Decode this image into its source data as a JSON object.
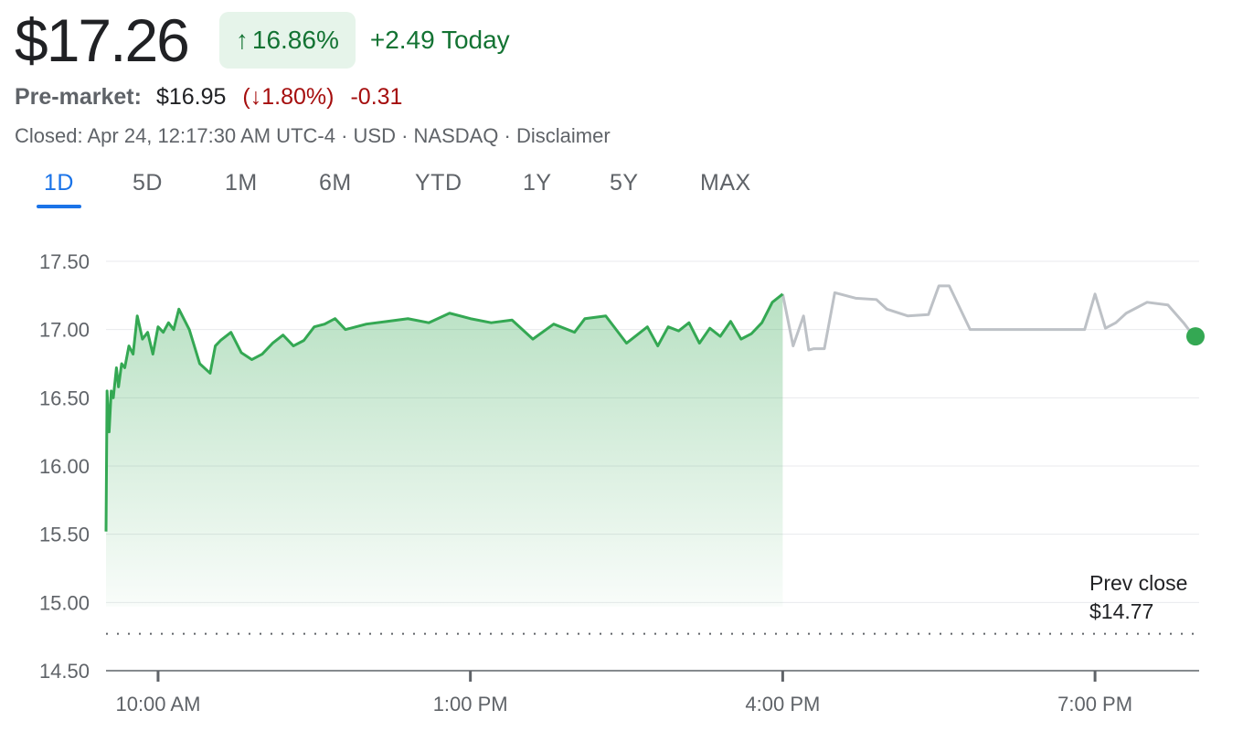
{
  "quote": {
    "price": "$17.26",
    "change_arrow": "↑",
    "change_pct": "16.86%",
    "change_today": "+2.49 Today",
    "premarket_label": "Pre-market:",
    "premarket_price": "$16.95",
    "premarket_open_paren": "(",
    "premarket_arrow": "↓",
    "premarket_pct": "1.80%",
    "premarket_close_paren": ")",
    "premarket_change": "-0.31",
    "closed_info": "Closed: Apr 24, 12:17:30 AM UTC-4 · USD · NASDAQ · Disclaimer"
  },
  "tabs": [
    {
      "label": "1D",
      "active": true
    },
    {
      "label": "5D"
    },
    {
      "label": "1M"
    },
    {
      "label": "6M"
    },
    {
      "label": "YTD"
    },
    {
      "label": "1Y"
    },
    {
      "label": "5Y"
    },
    {
      "label": "MAX"
    }
  ],
  "chart_data": {
    "type": "line",
    "ylim": [
      14.5,
      17.5
    ],
    "y_ticks": [
      "17.50",
      "17.00",
      "16.50",
      "16.00",
      "15.50",
      "15.00",
      "14.50"
    ],
    "y_tick_values": [
      17.5,
      17.0,
      16.5,
      16.0,
      15.5,
      15.0,
      14.5
    ],
    "x_ticks": [
      "10:00 AM",
      "1:00 PM",
      "4:00 PM",
      "7:00 PM"
    ],
    "x_tick_hours": [
      10,
      13,
      16,
      19
    ],
    "x_range_hours": [
      9.5,
      20
    ],
    "prev_close": 14.77,
    "prev_close_label": "Prev close",
    "prev_close_value": "$14.77",
    "grid": true,
    "colors": {
      "regular": "#34a853",
      "extended": "#bdc1c6",
      "fill": "#e6f4ea"
    },
    "series": [
      {
        "session": "regular",
        "x_hours": [
          9.5,
          9.51,
          9.53,
          9.55,
          9.57,
          9.6,
          9.62,
          9.65,
          9.68,
          9.72,
          9.76,
          9.8,
          9.85,
          9.9,
          9.95,
          10.0,
          10.05,
          10.1,
          10.15,
          10.2,
          10.3,
          10.4,
          10.5,
          10.55,
          10.6,
          10.7,
          10.8,
          10.9,
          11.0,
          11.1,
          11.2,
          11.3,
          11.4,
          11.5,
          11.6,
          11.7,
          11.8,
          11.9,
          12.0,
          12.2,
          12.4,
          12.6,
          12.8,
          13.0,
          13.2,
          13.4,
          13.6,
          13.8,
          14.0,
          14.1,
          14.3,
          14.5,
          14.7,
          14.8,
          14.9,
          15.0,
          15.1,
          15.2,
          15.3,
          15.4,
          15.5,
          15.6,
          15.7,
          15.8,
          15.9,
          16.0
        ],
        "y": [
          15.52,
          16.55,
          16.25,
          16.55,
          16.5,
          16.72,
          16.58,
          16.75,
          16.72,
          16.88,
          16.82,
          17.1,
          16.93,
          16.98,
          16.82,
          17.02,
          16.98,
          17.05,
          17.0,
          17.15,
          17.0,
          16.75,
          16.68,
          16.88,
          16.92,
          16.98,
          16.83,
          16.78,
          16.82,
          16.9,
          16.96,
          16.88,
          16.92,
          17.02,
          17.04,
          17.08,
          17.0,
          17.02,
          17.04,
          17.06,
          17.08,
          17.05,
          17.12,
          17.08,
          17.05,
          17.07,
          16.93,
          17.04,
          16.98,
          17.08,
          17.1,
          16.9,
          17.02,
          16.88,
          17.02,
          16.99,
          17.05,
          16.9,
          17.01,
          16.95,
          17.06,
          16.93,
          16.97,
          17.05,
          17.2,
          17.26
        ]
      },
      {
        "session": "extended",
        "x_hours": [
          16.0,
          16.1,
          16.2,
          16.25,
          16.3,
          16.4,
          16.5,
          16.55,
          16.7,
          16.9,
          17.0,
          17.2,
          17.4,
          17.5,
          17.6,
          17.8,
          18.0,
          18.2,
          18.4,
          18.6,
          18.7,
          18.9,
          19.0,
          19.1,
          19.2,
          19.3,
          19.5,
          19.7,
          19.85,
          19.95,
          20.0
        ],
        "y": [
          17.26,
          16.88,
          17.1,
          16.85,
          16.86,
          16.86,
          17.27,
          17.26,
          17.23,
          17.22,
          17.15,
          17.1,
          17.11,
          17.32,
          17.32,
          17.0,
          17.0,
          17.0,
          17.0,
          17.0,
          17.0,
          17.0,
          17.26,
          17.01,
          17.05,
          17.12,
          17.2,
          17.18,
          17.05,
          16.95,
          16.95
        ]
      }
    ]
  }
}
